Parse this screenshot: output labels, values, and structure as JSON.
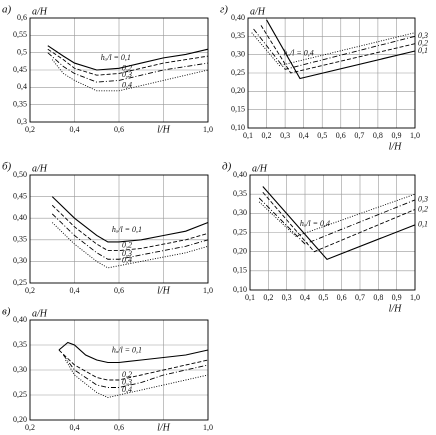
{
  "chart_data": [
    {
      "type": "line",
      "panel": "а)",
      "ylabel": "a/H",
      "xlabel": "l/H",
      "xlim": [
        0.2,
        1.0
      ],
      "ylim": [
        0.3,
        0.6
      ],
      "grid": true,
      "xticks": [
        {
          "value": 0.2,
          "label": "0,2"
        },
        {
          "value": 0.4,
          "label": "0,4"
        },
        {
          "value": 0.6,
          "label": "0,6"
        },
        {
          "value": 0.8,
          "label": null
        },
        {
          "value": 1.0,
          "label": "1,0"
        }
      ],
      "yticks": [
        {
          "value": 0.3,
          "label": "0,3"
        },
        {
          "value": 0.35,
          "label": "0,35"
        },
        {
          "value": 0.4,
          "label": "0,4"
        },
        {
          "value": 0.45,
          "label": "0,45"
        },
        {
          "value": 0.5,
          "label": "0,5"
        },
        {
          "value": 0.55,
          "label": "0,55"
        },
        {
          "value": 0.6,
          "label": "0,6"
        }
      ],
      "series": [
        {
          "name": "hₐ/l = 0,1",
          "color": "#000000",
          "linestyle": "solid",
          "x": [
            0.28,
            0.35,
            0.4,
            0.5,
            0.6,
            0.7,
            0.8,
            0.9,
            1.0
          ],
          "values": [
            0.52,
            0.49,
            0.47,
            0.45,
            0.455,
            0.47,
            0.485,
            0.495,
            0.51
          ]
        },
        {
          "name": "0,2",
          "color": "#000000",
          "linestyle": "dashed",
          "x": [
            0.28,
            0.35,
            0.4,
            0.5,
            0.6,
            0.7,
            0.8,
            0.9,
            1.0
          ],
          "values": [
            0.51,
            0.48,
            0.455,
            0.435,
            0.44,
            0.455,
            0.47,
            0.48,
            0.49
          ]
        },
        {
          "name": "0,3",
          "color": "#000000",
          "linestyle": "dashdot",
          "x": [
            0.28,
            0.35,
            0.4,
            0.5,
            0.6,
            0.7,
            0.8,
            0.9,
            1.0
          ],
          "values": [
            0.5,
            0.46,
            0.44,
            0.415,
            0.42,
            0.435,
            0.45,
            0.46,
            0.47
          ]
        },
        {
          "name": "0,4",
          "color": "#000000",
          "linestyle": "dotted",
          "x": [
            0.3,
            0.35,
            0.4,
            0.5,
            0.6,
            0.7,
            0.8,
            0.9,
            1.0
          ],
          "values": [
            0.48,
            0.44,
            0.42,
            0.39,
            0.39,
            0.405,
            0.42,
            0.435,
            0.45
          ]
        }
      ]
    },
    {
      "type": "line",
      "panel": "г)",
      "ylabel": "a/H",
      "xlabel": "l/H",
      "xlim": [
        0.1,
        1.0
      ],
      "ylim": [
        0.1,
        0.4
      ],
      "grid": true,
      "xticks": [
        {
          "value": 0.1,
          "label": "0,1"
        },
        {
          "value": 0.2,
          "label": "0,2"
        },
        {
          "value": 0.3,
          "label": "0,3"
        },
        {
          "value": 0.4,
          "label": "0,4"
        },
        {
          "value": 0.5,
          "label": "0,5"
        },
        {
          "value": 0.6,
          "label": "0,6"
        },
        {
          "value": 0.7,
          "label": "0,7"
        },
        {
          "value": 0.8,
          "label": "0,8"
        },
        {
          "value": 0.9,
          "label": "0,9"
        },
        {
          "value": 1.0,
          "label": "1,0"
        }
      ],
      "yticks": [
        {
          "value": 0.1,
          "label": "0,10"
        },
        {
          "value": 0.15,
          "label": "0,15"
        },
        {
          "value": 0.2,
          "label": "0,20"
        },
        {
          "value": 0.25,
          "label": "0,25"
        },
        {
          "value": 0.3,
          "label": "0,30"
        },
        {
          "value": 0.35,
          "label": "0,35"
        },
        {
          "value": 0.4,
          "label": "0,40"
        }
      ],
      "series": [
        {
          "name": "0,1",
          "color": "#000000",
          "linestyle": "solid",
          "x": [
            0.2,
            0.38,
            1.0
          ],
          "values": [
            0.395,
            0.235,
            0.31
          ]
        },
        {
          "name": "0,2",
          "color": "#000000",
          "linestyle": "dashed",
          "x": [
            0.17,
            0.33,
            1.0
          ],
          "values": [
            0.38,
            0.25,
            0.33
          ]
        },
        {
          "name": "0,3",
          "color": "#000000",
          "linestyle": "dashdot",
          "x": [
            0.13,
            0.3,
            1.0
          ],
          "values": [
            0.37,
            0.26,
            0.35
          ]
        },
        {
          "name": "hₐ/l = 0,4",
          "color": "#000000",
          "linestyle": "dotted",
          "x": [
            0.12,
            0.27,
            1.0
          ],
          "values": [
            0.36,
            0.27,
            0.36
          ]
        }
      ]
    },
    {
      "type": "line",
      "panel": "б)",
      "ylabel": "a/H",
      "xlabel": "l/H",
      "xlim": [
        0.2,
        1.0
      ],
      "ylim": [
        0.25,
        0.5
      ],
      "grid": true,
      "xticks": [
        {
          "value": 0.2,
          "label": "0,2"
        },
        {
          "value": 0.4,
          "label": "0,4"
        },
        {
          "value": 0.6,
          "label": "0,6"
        },
        {
          "value": 0.8,
          "label": null
        },
        {
          "value": 1.0,
          "label": "1,0"
        }
      ],
      "yticks": [
        {
          "value": 0.25,
          "label": "0,25"
        },
        {
          "value": 0.3,
          "label": "0,30"
        },
        {
          "value": 0.35,
          "label": "0,35"
        },
        {
          "value": 0.4,
          "label": "0,40"
        },
        {
          "value": 0.45,
          "label": "0,45"
        },
        {
          "value": 0.5,
          "label": "0,50"
        }
      ],
      "series": [
        {
          "name": "hₐ/l = 0,1",
          "color": "#000000",
          "linestyle": "solid",
          "x": [
            0.3,
            0.4,
            0.5,
            0.55,
            0.6,
            0.7,
            0.8,
            0.9,
            1.0
          ],
          "values": [
            0.45,
            0.4,
            0.36,
            0.345,
            0.345,
            0.35,
            0.36,
            0.37,
            0.39
          ]
        },
        {
          "name": "0,2",
          "color": "#000000",
          "linestyle": "dashed",
          "x": [
            0.3,
            0.4,
            0.5,
            0.55,
            0.6,
            0.7,
            0.8,
            0.9,
            1.0
          ],
          "values": [
            0.43,
            0.38,
            0.34,
            0.325,
            0.325,
            0.33,
            0.34,
            0.35,
            0.365
          ]
        },
        {
          "name": "0,3",
          "color": "#000000",
          "linestyle": "dashdot",
          "x": [
            0.3,
            0.4,
            0.5,
            0.55,
            0.6,
            0.7,
            0.8,
            0.9,
            1.0
          ],
          "values": [
            0.41,
            0.36,
            0.32,
            0.305,
            0.305,
            0.315,
            0.325,
            0.335,
            0.35
          ]
        },
        {
          "name": "0,4",
          "color": "#000000",
          "linestyle": "dotted",
          "x": [
            0.3,
            0.4,
            0.5,
            0.55,
            0.6,
            0.7,
            0.8,
            0.9,
            1.0
          ],
          "values": [
            0.39,
            0.34,
            0.3,
            0.285,
            0.29,
            0.3,
            0.31,
            0.32,
            0.335
          ]
        }
      ]
    },
    {
      "type": "line",
      "panel": "д)",
      "ylabel": "a/H",
      "xlabel": "l/H",
      "xlim": [
        0.1,
        1.0
      ],
      "ylim": [
        0.1,
        0.4
      ],
      "grid": true,
      "xticks": [
        {
          "value": 0.1,
          "label": "0,1"
        },
        {
          "value": 0.2,
          "label": "0,2"
        },
        {
          "value": 0.3,
          "label": "0,3"
        },
        {
          "value": 0.4,
          "label": "0,4"
        },
        {
          "value": 0.5,
          "label": "0,5"
        },
        {
          "value": 0.6,
          "label": "0,6"
        },
        {
          "value": 0.7,
          "label": "0,7"
        },
        {
          "value": 0.8,
          "label": "0,8"
        },
        {
          "value": 0.9,
          "label": "0,9"
        },
        {
          "value": 1.0,
          "label": "1,0"
        }
      ],
      "yticks": [
        {
          "value": 0.1,
          "label": "0,10"
        },
        {
          "value": 0.15,
          "label": "0,15"
        },
        {
          "value": 0.2,
          "label": "0,20"
        },
        {
          "value": 0.25,
          "label": "0,25"
        },
        {
          "value": 0.3,
          "label": "0,30"
        },
        {
          "value": 0.35,
          "label": "0,35"
        },
        {
          "value": 0.4,
          "label": "0,40"
        }
      ],
      "series": [
        {
          "name": "0,1",
          "color": "#000000",
          "linestyle": "solid",
          "x": [
            0.17,
            0.52,
            1.0
          ],
          "values": [
            0.37,
            0.18,
            0.27
          ]
        },
        {
          "name": "0,2",
          "color": "#000000",
          "linestyle": "dashed",
          "x": [
            0.17,
            0.45,
            1.0
          ],
          "values": [
            0.355,
            0.2,
            0.31
          ]
        },
        {
          "name": "0,3",
          "color": "#000000",
          "linestyle": "dashdot",
          "x": [
            0.15,
            0.4,
            1.0
          ],
          "values": [
            0.34,
            0.22,
            0.335
          ]
        },
        {
          "name": "hₐ/l = 0,4",
          "color": "#000000",
          "linestyle": "dotted",
          "x": [
            0.15,
            0.35,
            1.0
          ],
          "values": [
            0.33,
            0.24,
            0.35
          ]
        }
      ]
    },
    {
      "type": "line",
      "panel": "в)",
      "ylabel": "a/H",
      "xlabel": "l/H",
      "xlim": [
        0.2,
        1.0
      ],
      "ylim": [
        0.2,
        0.4
      ],
      "grid": true,
      "xticks": [
        {
          "value": 0.2,
          "label": "0,2"
        },
        {
          "value": 0.4,
          "label": "0,4"
        },
        {
          "value": 0.6,
          "label": "0,6"
        },
        {
          "value": 0.8,
          "label": null
        },
        {
          "value": 1.0,
          "label": "1,0"
        }
      ],
      "yticks": [
        {
          "value": 0.2,
          "label": "0,20"
        },
        {
          "value": 0.25,
          "label": "0,25"
        },
        {
          "value": 0.3,
          "label": "0,30"
        },
        {
          "value": 0.35,
          "label": "0,35"
        },
        {
          "value": 0.4,
          "label": "0,40"
        }
      ],
      "series": [
        {
          "name": "hₐ/l = 0,1",
          "color": "#000000",
          "linestyle": "solid",
          "x": [
            0.33,
            0.37,
            0.4,
            0.45,
            0.5,
            0.55,
            0.6,
            0.7,
            0.8,
            0.9,
            1.0
          ],
          "values": [
            0.34,
            0.355,
            0.35,
            0.33,
            0.32,
            0.315,
            0.315,
            0.32,
            0.325,
            0.33,
            0.34
          ]
        },
        {
          "name": "0,2",
          "color": "#000000",
          "linestyle": "dashed",
          "x": [
            0.33,
            0.4,
            0.5,
            0.55,
            0.6,
            0.7,
            0.8,
            0.9,
            1.0
          ],
          "values": [
            0.34,
            0.31,
            0.285,
            0.28,
            0.28,
            0.29,
            0.3,
            0.31,
            0.32
          ]
        },
        {
          "name": "0,3",
          "color": "#000000",
          "linestyle": "dashdot",
          "x": [
            0.35,
            0.4,
            0.5,
            0.55,
            0.6,
            0.7,
            0.8,
            0.9,
            1.0
          ],
          "values": [
            0.33,
            0.3,
            0.27,
            0.265,
            0.265,
            0.275,
            0.29,
            0.3,
            0.31
          ]
        },
        {
          "name": "0,4",
          "color": "#000000",
          "linestyle": "dotted",
          "x": [
            0.36,
            0.4,
            0.5,
            0.55,
            0.6,
            0.7,
            0.8,
            0.9,
            1.0
          ],
          "values": [
            0.32,
            0.29,
            0.255,
            0.245,
            0.25,
            0.26,
            0.27,
            0.28,
            0.29
          ]
        }
      ]
    }
  ]
}
